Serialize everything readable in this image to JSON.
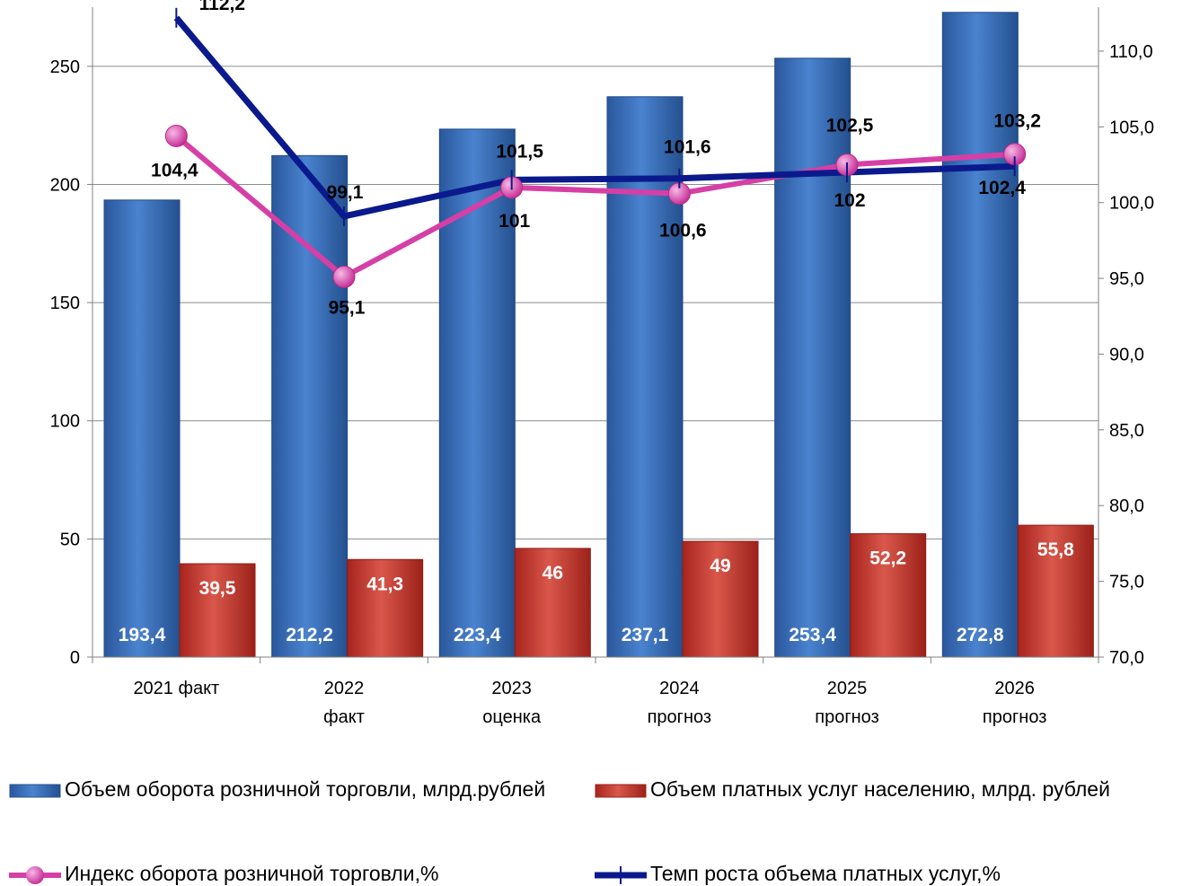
{
  "chart_data": {
    "type": "bar",
    "categories": [
      [
        "2021 факт"
      ],
      [
        "2022",
        "факт"
      ],
      [
        "2023",
        "оценка"
      ],
      [
        "2024",
        "прогноз"
      ],
      [
        "2025",
        "прогноз"
      ],
      [
        "2026",
        "прогноз"
      ]
    ],
    "series": [
      {
        "name": "Объем оборота розничной торговли, млрд.рублей",
        "kind": "bar",
        "axis": "left",
        "color": "#3a6db8",
        "values": [
          193.4,
          212.2,
          223.4,
          237.1,
          253.4,
          272.8
        ],
        "labels": [
          "193,4",
          "212,2",
          "223,4",
          "237,1",
          "253,4",
          "272,8"
        ]
      },
      {
        "name": "Объем платных услуг населению, млрд. рублей",
        "kind": "bar",
        "axis": "left",
        "color": "#c0392b",
        "values": [
          39.5,
          41.3,
          46,
          49,
          52.2,
          55.8
        ],
        "labels": [
          "39,5",
          "41,3",
          "46",
          "49",
          "52,2",
          "55,8"
        ]
      },
      {
        "name": "Индекс оборота розничной торговли,%",
        "kind": "line",
        "axis": "right",
        "color": "#d63fa6",
        "values": [
          104.4,
          95.1,
          101,
          100.6,
          102.5,
          103.2
        ],
        "labels": [
          "104,4",
          "95,1",
          "101",
          "100,6",
          "102,5",
          "103,2"
        ]
      },
      {
        "name": "Темп роста объема платных услуг,%",
        "kind": "line",
        "axis": "right",
        "color": "#0a1a8c",
        "values": [
          112.2,
          99.1,
          101.5,
          101.6,
          102,
          102.4
        ],
        "labels": [
          "112,2",
          "99,1",
          "101,5",
          "101,6",
          "102",
          "102,4"
        ]
      }
    ],
    "left_axis": {
      "ylim": [
        0,
        275
      ],
      "ticks": [
        0,
        50,
        100,
        150,
        200,
        250
      ],
      "tick_labels": [
        "0",
        "50",
        "100",
        "150",
        "200",
        "250"
      ]
    },
    "right_axis": {
      "ylim": [
        70,
        112.9
      ],
      "ticks": [
        70,
        75,
        80,
        85,
        90,
        95,
        100,
        105,
        110
      ],
      "tick_labels": [
        "70,0",
        "75,0",
        "80,0",
        "85,0",
        "90,0",
        "95,0",
        "100,0",
        "105,0",
        "110,0"
      ]
    },
    "grid": true,
    "legend_position": "bottom"
  }
}
